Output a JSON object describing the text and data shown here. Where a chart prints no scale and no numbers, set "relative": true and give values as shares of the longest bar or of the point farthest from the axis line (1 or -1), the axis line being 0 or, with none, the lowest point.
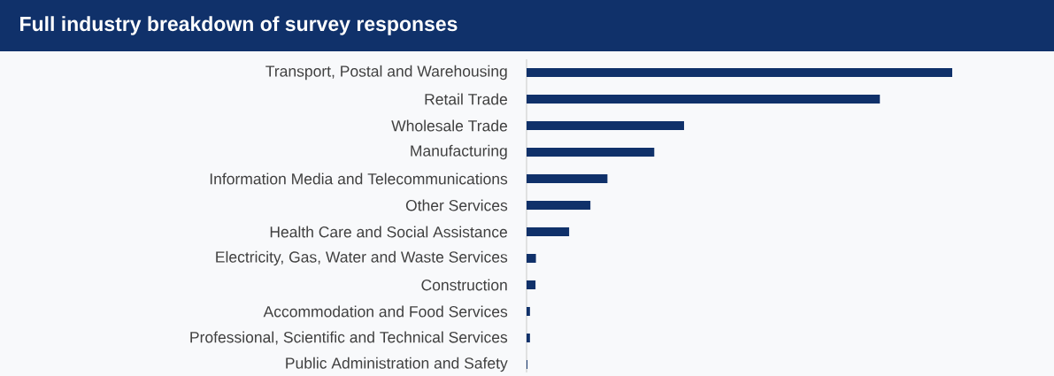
{
  "chart_data": {
    "type": "bar",
    "orientation": "horizontal",
    "relative": true,
    "title": "Full industry breakdown of survey responses",
    "categories": [
      "Transport, Postal and Warehousing",
      "Retail Trade",
      "Wholesale Trade",
      "Manufacturing",
      "Information Media and Telecommunications",
      "Other Services",
      "Health Care and Social Assistance",
      "Electricity, Gas, Water and Waste Services",
      "Construction",
      "Accommodation and Food Services",
      "Professional, Scientific and Technical Services",
      "Public Administration and Safety"
    ],
    "values": [
      1,
      0.83,
      0.37,
      0.3,
      0.19,
      0.15,
      0.1,
      0.022,
      0.021,
      0.008,
      0.008,
      0.002
    ],
    "color": "#10316a"
  }
}
